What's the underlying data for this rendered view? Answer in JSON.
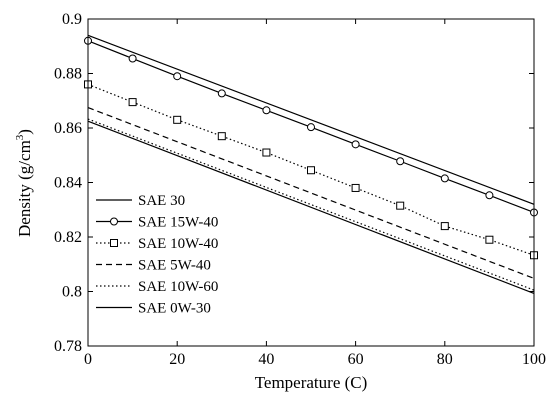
{
  "chart_data": {
    "type": "line",
    "xlabel": "Temperature (C)",
    "ylabel_main": "Density (g/cm",
    "ylabel_sup": "3",
    "ylabel_close": ")",
    "xlim": [
      0,
      100
    ],
    "ylim": [
      0.78,
      0.9
    ],
    "xticks": [
      0,
      20,
      40,
      60,
      80,
      100
    ],
    "xtick_labels": [
      "0",
      "20",
      "40",
      "60",
      "80",
      "100"
    ],
    "yticks": [
      0.78,
      0.8,
      0.82,
      0.84,
      0.86,
      0.88,
      0.9
    ],
    "ytick_labels": [
      "0.78",
      "0.8",
      "0.82",
      "0.84",
      "0.86",
      "0.88",
      "0.9"
    ],
    "grid": false,
    "legend_position": "bottom-left",
    "series": [
      {
        "name": "SAE 30",
        "style": "solid",
        "marker": "none",
        "x": [
          0,
          100
        ],
        "y": [
          0.894,
          0.832
        ]
      },
      {
        "name": "SAE 15W-40",
        "style": "solid",
        "marker": "circle",
        "x": [
          0,
          10,
          20,
          30,
          40,
          50,
          60,
          70,
          80,
          90,
          100
        ],
        "y": [
          0.892,
          0.8855,
          0.879,
          0.8727,
          0.8665,
          0.8603,
          0.854,
          0.8478,
          0.8415,
          0.8353,
          0.829
        ]
      },
      {
        "name": "SAE 10W-40",
        "style": "dotted",
        "marker": "square",
        "x": [
          0,
          10,
          20,
          30,
          40,
          50,
          60,
          70,
          80,
          90,
          100
        ],
        "y": [
          0.876,
          0.8695,
          0.863,
          0.857,
          0.851,
          0.8445,
          0.838,
          0.8315,
          0.824,
          0.819,
          0.8133
        ]
      },
      {
        "name": "SAE 5W-40",
        "style": "dashed",
        "marker": "none",
        "x": [
          0,
          100
        ],
        "y": [
          0.8675,
          0.8048
        ]
      },
      {
        "name": "SAE 10W-60",
        "style": "dotted",
        "marker": "none",
        "x": [
          0,
          100
        ],
        "y": [
          0.8633,
          0.8005
        ]
      },
      {
        "name": "SAE 0W-30",
        "style": "solid",
        "marker": "none",
        "x": [
          0,
          100
        ],
        "y": [
          0.8625,
          0.7993
        ]
      }
    ]
  }
}
